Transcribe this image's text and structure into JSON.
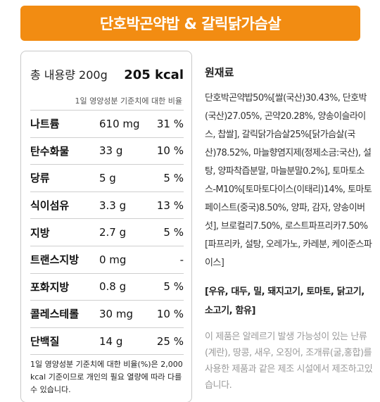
{
  "title": "단호박곤약밥 & 갈릭닭가슴살",
  "nutrition": {
    "total_label": "총 내용량 200g",
    "kcal": "205 kcal",
    "daily_caption": "1일 영양성분 기준치에 대한 비율",
    "rows": [
      {
        "name": "나트륨",
        "value": "610 mg",
        "pct": "31 %"
      },
      {
        "name": "탄수화물",
        "value": "33 g",
        "pct": "10 %"
      },
      {
        "name": "당류",
        "value": "5 g",
        "pct": "5 %"
      },
      {
        "name": "식이섬유",
        "value": "3.3 g",
        "pct": "13 %"
      },
      {
        "name": "지방",
        "value": "2.7 g",
        "pct": "5 %"
      },
      {
        "name": "트랜스지방",
        "value": "0 mg",
        "pct": "-"
      },
      {
        "name": "포화지방",
        "value": "0.8 g",
        "pct": "5 %"
      },
      {
        "name": "콜레스테롤",
        "value": "30 mg",
        "pct": "10 %"
      },
      {
        "name": "단백질",
        "value": "14 g",
        "pct": "25 %"
      }
    ],
    "note": "1일 영양성분 기준치에 대한 비율(%)은 2,000 kcal 기준이므로 개인의 필요 열량에 따라 다를 수 있습니다."
  },
  "ingredients": {
    "heading": "원재료",
    "text": "단호박곤약밥50%[쌀(국산)30.43%, 단호박(국산)27.05%, 곤약20.28%, 양송이슬라이스, 찹쌀], 갈릭닭가슴살25%[닭가슴살(국산)78.52%, 마늘향염지제(정제소금:국산), 설탕, 양파착즙분말, 마늘분말0.2%], 토마토소스-M10%[토마토다이스(이태리)14%, 토마토페이스트(중국)8.50%, 양파, 감자, 양송이버섯], 브로컬리7.50%, 로스트파프리카7.50%[파프리카, 설탕, 오레가노, 카레분, 케이준스파이스]",
    "allergens": "[우유, 대두, 밀, 돼지고기, 토마토, 닭고기, 소고기, 함유]",
    "caution": "이 제품은 알레르기 발생 가능성이 있는 난류(계란), 땅콩, 새우, 오징어, 조개류(굴,홍합)를 사용한 제품과 같은 제조 시설에서 제조하고있습니다."
  }
}
